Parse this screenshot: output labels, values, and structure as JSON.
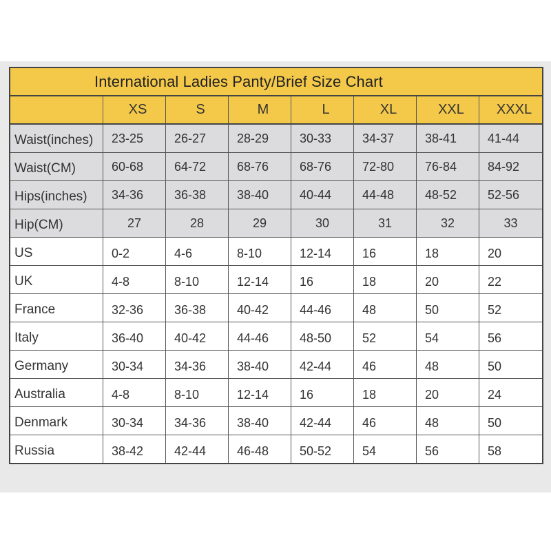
{
  "title": "International Ladies Panty/Brief Size Chart",
  "sizes": [
    "XS",
    "S",
    "M",
    "L",
    "XL",
    "XXL",
    "XXXL"
  ],
  "rows": [
    {
      "label": "Waist(inches)",
      "values": [
        "23-25",
        "26-27",
        "28-29",
        "30-33",
        "34-37",
        "38-41",
        "41-44"
      ]
    },
    {
      "label": "Waist(CM)",
      "values": [
        "60-68",
        "64-72",
        "68-76",
        "68-76",
        "72-80",
        "76-84",
        "84-92"
      ]
    },
    {
      "label": "Hips(inches)",
      "values": [
        "34-36",
        "36-38",
        "38-40",
        "40-44",
        "44-48",
        "48-52",
        "52-56"
      ]
    },
    {
      "label": "Hip(CM)",
      "values": [
        "27",
        "28",
        "29",
        "30",
        "31",
        "32",
        "33"
      ]
    },
    {
      "label": "US",
      "values": [
        "0-2",
        "4-6",
        "8-10",
        "12-14",
        "16",
        "18",
        "20"
      ]
    },
    {
      "label": "UK",
      "values": [
        "4-8",
        "8-10",
        "12-14",
        "16",
        "18",
        "20",
        "22"
      ]
    },
    {
      "label": "France",
      "values": [
        "32-36",
        "36-38",
        "40-42",
        "44-46",
        "48",
        "50",
        "52"
      ]
    },
    {
      "label": "Italy",
      "values": [
        "36-40",
        "40-42",
        "44-46",
        "48-50",
        "52",
        "54",
        "56"
      ]
    },
    {
      "label": "Germany",
      "values": [
        "30-34",
        "34-36",
        "38-40",
        "42-44",
        "46",
        "48",
        "50"
      ]
    },
    {
      "label": "Australia",
      "values": [
        "4-8",
        "8-10",
        "12-14",
        "16",
        "18",
        "20",
        "24"
      ]
    },
    {
      "label": "Denmark",
      "values": [
        "30-34",
        "34-36",
        "38-40",
        "42-44",
        "46",
        "48",
        "50"
      ]
    },
    {
      "label": "Russia",
      "values": [
        "38-42",
        "42-44",
        "46-48",
        "50-52",
        "54",
        "56",
        "58"
      ]
    }
  ],
  "colors": {
    "header": "#f4c94a",
    "shaded": "#dcdcde",
    "band": "#e9e9e9"
  }
}
